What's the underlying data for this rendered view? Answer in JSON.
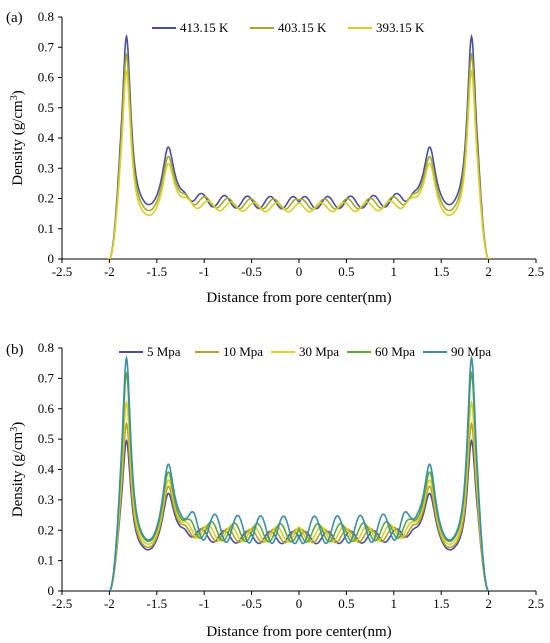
{
  "chart_data": [
    {
      "type": "line",
      "panel_label": "(a)",
      "xlabel": "Distance from pore center(nm)",
      "ylabel": "Density (g/cm",
      "ylabel_sup": "3",
      "ylabel_close": ")",
      "xlim": [
        -2.5,
        2.5
      ],
      "ylim": [
        0,
        0.8
      ],
      "xticks": [
        "-2.5",
        "-2",
        "-1.5",
        "-1",
        "-0.5",
        "0",
        "0.5",
        "1",
        "1.5",
        "2",
        "2.5"
      ],
      "yticks": [
        "0",
        "0.1",
        "0.2",
        "0.3",
        "0.4",
        "0.5",
        "0.6",
        "0.7",
        "0.8"
      ],
      "legend_position": "top-center",
      "series": [
        {
          "name": "413.15 K",
          "color": "#4a4f9c",
          "peak1": 0.72,
          "peak2": 0.335,
          "min1": 0.13,
          "min2": 0.12,
          "plateau": 0.185,
          "osc": 0.02
        },
        {
          "name": "403.15 K",
          "color": "#a2a82a",
          "peak1": 0.66,
          "peak2": 0.3,
          "min1": 0.115,
          "min2": 0.105,
          "plateau": 0.18,
          "osc": 0.017
        },
        {
          "name": "393.15 K",
          "color": "#d9cf2a",
          "peak1": 0.61,
          "peak2": 0.275,
          "min1": 0.1,
          "min2": 0.095,
          "plateau": 0.17,
          "osc": 0.015
        }
      ]
    },
    {
      "type": "line",
      "panel_label": "(b)",
      "xlabel": "Distance from pore center(nm)",
      "ylabel": "Density (g/cm",
      "ylabel_sup": "3",
      "ylabel_close": ")",
      "xlim": [
        -2.5,
        2.5
      ],
      "ylim": [
        0,
        0.8
      ],
      "xticks": [
        "-2.5",
        "-2",
        "-1.5",
        "-1",
        "-0.5",
        "0",
        "0.5",
        "1",
        "1.5",
        "2",
        "2.5"
      ],
      "yticks": [
        "0",
        "0.1",
        "0.2",
        "0.3",
        "0.4",
        "0.5",
        "0.6",
        "0.7",
        "0.8"
      ],
      "legend_position": "top-center",
      "series": [
        {
          "name": "5 Mpa",
          "color": "#4a4f9c",
          "peak1": 0.48,
          "peak2": 0.28,
          "min1": 0.1,
          "min2": 0.09,
          "plateau": 0.175,
          "osc": 0.02
        },
        {
          "name": "10 Mpa",
          "color": "#b8a42a",
          "peak1": 0.54,
          "peak2": 0.3,
          "min1": 0.1,
          "min2": 0.095,
          "plateau": 0.18,
          "osc": 0.022
        },
        {
          "name": "30 Mpa",
          "color": "#d9d02a",
          "peak1": 0.61,
          "peak2": 0.32,
          "min1": 0.105,
          "min2": 0.1,
          "plateau": 0.185,
          "osc": 0.025
        },
        {
          "name": "60 Mpa",
          "color": "#5ea83a",
          "peak1": 0.7,
          "peak2": 0.345,
          "min1": 0.11,
          "min2": 0.1,
          "plateau": 0.19,
          "osc": 0.03
        },
        {
          "name": "90 Mpa",
          "color": "#3d8ea3",
          "peak1": 0.75,
          "peak2": 0.365,
          "min1": 0.11,
          "min2": 0.1,
          "plateau": 0.2,
          "osc": 0.045
        }
      ]
    }
  ]
}
